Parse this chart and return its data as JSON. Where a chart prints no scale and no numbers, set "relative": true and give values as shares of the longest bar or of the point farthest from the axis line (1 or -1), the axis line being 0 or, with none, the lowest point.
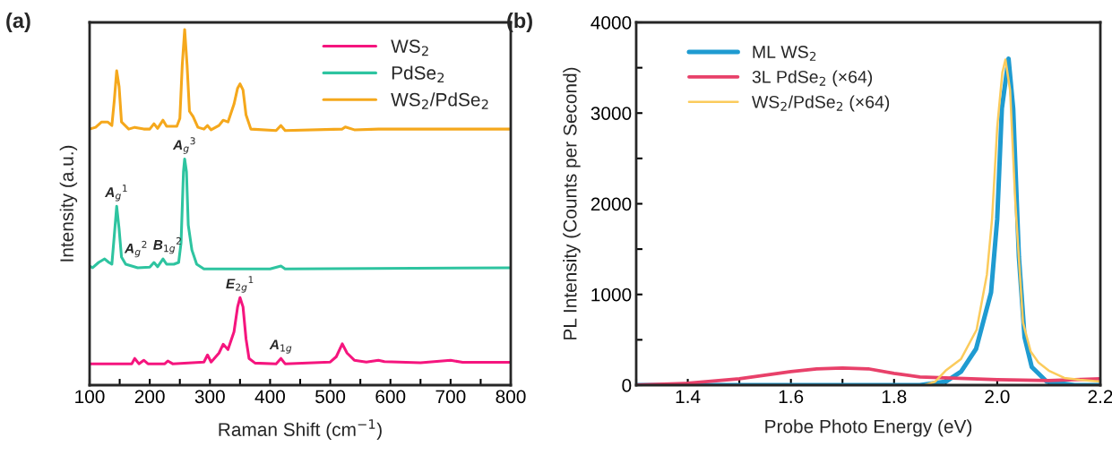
{
  "chart_data": [
    {
      "type": "line",
      "title": "(a)",
      "xlabel": "Raman Shift (cm$^{−1}$)",
      "ylabel": "Intensity (a.u.)",
      "relative": true,
      "legend": "top right",
      "xlim": [
        100,
        800
      ],
      "xticks": [
        100,
        {
          "value": 150,
          "label": null
        },
        200,
        {
          "value": 250,
          "label": null
        },
        300,
        {
          "value": 350,
          "label": null
        },
        400,
        {
          "value": 450,
          "label": null
        },
        500,
        {
          "value": 550,
          "label": null
        },
        600,
        {
          "value": 650,
          "label": null
        },
        700,
        {
          "value": 750,
          "label": null
        },
        800
      ],
      "series": [
        {
          "name": "WS$_{2}$",
          "color": "#f5157e",
          "x": [
            100,
            170,
            175,
            182,
            190,
            197,
            225,
            230,
            238,
            290,
            296,
            302,
            315,
            322,
            330,
            340,
            346,
            350,
            355,
            360,
            365,
            375,
            410,
            418,
            425,
            500,
            510,
            520,
            528,
            540,
            560,
            580,
            590,
            650,
            700,
            720,
            800
          ],
          "values": [
            0.06,
            0.06,
            0.075,
            0.06,
            0.07,
            0.06,
            0.06,
            0.068,
            0.06,
            0.065,
            0.085,
            0.065,
            0.09,
            0.115,
            0.1,
            0.15,
            0.22,
            0.246,
            0.22,
            0.13,
            0.075,
            0.062,
            0.06,
            0.075,
            0.06,
            0.065,
            0.08,
            0.116,
            0.09,
            0.07,
            0.065,
            0.07,
            0.066,
            0.063,
            0.07,
            0.064,
            0.064
          ]
        },
        {
          "name": "PdSe$_{2}$",
          "color": "#2ec4a0",
          "x": [
            100,
            105,
            115,
            125,
            132,
            137,
            141,
            145,
            149,
            153,
            160,
            180,
            200,
            207,
            213,
            222,
            228,
            240,
            248,
            252,
            256,
            258,
            261,
            264,
            270,
            278,
            290,
            400,
            418,
            425,
            800
          ],
          "values": [
            0.335,
            0.33,
            0.345,
            0.355,
            0.345,
            0.34,
            0.42,
            0.503,
            0.44,
            0.36,
            0.34,
            0.33,
            0.332,
            0.345,
            0.333,
            0.355,
            0.34,
            0.34,
            0.345,
            0.4,
            0.6,
            0.636,
            0.6,
            0.45,
            0.38,
            0.34,
            0.327,
            0.327,
            0.335,
            0.327,
            0.33
          ]
        },
        {
          "name": "WS$_{2}$/PdSe$_{2}$",
          "color": "#f5a81c",
          "x": [
            100,
            110,
            120,
            130,
            137,
            141,
            145,
            149,
            153,
            165,
            175,
            190,
            200,
            207,
            213,
            222,
            228,
            245,
            250,
            254,
            258,
            262,
            266,
            272,
            280,
            290,
            296,
            302,
            315,
            322,
            330,
            340,
            346,
            350,
            355,
            360,
            368,
            410,
            418,
            425,
            520,
            525,
            540,
            580,
            700,
            800
          ],
          "values": [
            0.72,
            0.725,
            0.74,
            0.74,
            0.73,
            0.8,
            0.884,
            0.84,
            0.74,
            0.72,
            0.725,
            0.72,
            0.72,
            0.735,
            0.722,
            0.745,
            0.728,
            0.728,
            0.75,
            0.9,
            1.0,
            0.9,
            0.77,
            0.755,
            0.725,
            0.72,
            0.73,
            0.718,
            0.73,
            0.745,
            0.74,
            0.79,
            0.835,
            0.847,
            0.83,
            0.76,
            0.72,
            0.716,
            0.73,
            0.716,
            0.72,
            0.726,
            0.718,
            0.72,
            0.72,
            0.72
          ]
        }
      ],
      "annotations": [
        {
          "text": "A$_{g}$$^{1}$",
          "x": 145,
          "y": 0.503
        },
        {
          "text": "A$_{g}$$^{2}$",
          "x": 207,
          "y": 0.345
        },
        {
          "text": "B$_{1g}$$^{2}$",
          "x": 222,
          "y": 0.355
        },
        {
          "text": "A$_{g}$$^{3}$",
          "x": 258,
          "y": 0.636
        },
        {
          "text": "E$_{2g}$$^{1}$",
          "x": 350,
          "y": 0.246
        },
        {
          "text": "A$_{1g}$",
          "x": 418,
          "y": 0.075
        }
      ]
    },
    {
      "type": "line",
      "title": "(b)",
      "xlabel": "Probe Photo Energy (eV)",
      "ylabel": "PL Intensity (Counts per Second)",
      "legend": "top left",
      "xlim": [
        1.3,
        2.2
      ],
      "xticks": [
        {
          "value": 1.3,
          "label": null
        },
        1.4,
        {
          "value": 1.5,
          "label": null
        },
        1.6,
        {
          "value": 1.7,
          "label": null
        },
        1.8,
        {
          "value": 1.9,
          "label": null
        },
        {
          "value": 2.0,
          "label": "2.0"
        },
        {
          "value": 2.1,
          "label": null
        },
        2.2
      ],
      "ylim": [
        0,
        4000
      ],
      "yticks": [
        0,
        {
          "value": 500,
          "label": null
        },
        1000,
        {
          "value": 1500,
          "label": null
        },
        2000,
        {
          "value": 2500,
          "label": null
        },
        3000,
        {
          "value": 3500,
          "label": null
        },
        4000
      ],
      "series": [
        {
          "name": "ML WS$_{2}$",
          "color": "#1f9bd1",
          "x": [
            1.3,
            1.8,
            1.85,
            1.901,
            1.93,
            1.959,
            1.988,
            2.0,
            2.009,
            2.022,
            2.031,
            2.042,
            2.053,
            2.067,
            2.096,
            2.15,
            2.2
          ],
          "values": [
            0,
            0,
            0,
            40,
            150,
            400,
            1020,
            1830,
            3050,
            3600,
            3050,
            1420,
            530,
            200,
            40,
            0,
            0
          ]
        },
        {
          "name": "3L PdSe$_{2}$ (×64)",
          "color": "#e8416a",
          "x": [
            1.3,
            1.4,
            1.5,
            1.6,
            1.65,
            1.7,
            1.75,
            1.8,
            1.85,
            1.9,
            2.0,
            2.1,
            2.15,
            2.2
          ],
          "values": [
            0,
            20,
            70,
            150,
            180,
            190,
            180,
            130,
            90,
            80,
            60,
            50,
            60,
            70
          ]
        },
        {
          "name": "WS$_{2}$/PdSe$_{2}$ (×64)",
          "color": "#fbcb5c",
          "x": [
            1.86,
            1.88,
            1.9,
            1.93,
            1.96,
            1.98,
            1.99,
            2.0,
            2.01,
            2.016,
            2.025,
            2.035,
            2.05,
            2.065,
            2.08,
            2.1,
            2.13,
            2.16,
            2.2
          ],
          "values": [
            0,
            40,
            160,
            290,
            610,
            1220,
            1830,
            2840,
            3450,
            3590,
            3250,
            2030,
            690,
            370,
            250,
            160,
            80,
            60,
            40
          ]
        }
      ]
    }
  ]
}
